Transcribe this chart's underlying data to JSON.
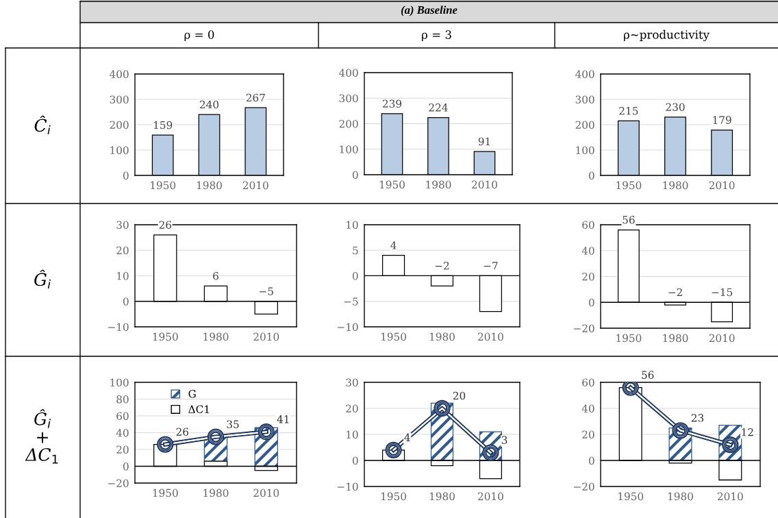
{
  "chart_data": [
    {
      "type": "other",
      "title": "(a) Baseline",
      "categories": [
        "ρ = 0",
        "ρ = 3",
        "ρ~productivity"
      ],
      "y_categories": [
        "Ĉ$_{i}$",
        "Ĝ$_{i}$",
        "Ĝ$_{i}$\n+\nΔC$_{1}$"
      ]
    },
    {
      "type": "bar",
      "categories": [
        "1950",
        "1980",
        "2010"
      ],
      "values": [
        159,
        240,
        267
      ],
      "color": "#b8cce4",
      "ylim": [
        0,
        400
      ],
      "yticks": [
        0,
        100,
        200,
        300,
        400
      ],
      "data_labels": true,
      "grid": "y"
    },
    {
      "type": "bar",
      "categories": [
        "1950",
        "1980",
        "2010"
      ],
      "values": [
        239,
        224,
        91
      ],
      "color": "#b8cce4",
      "ylim": [
        0,
        400
      ],
      "yticks": [
        0,
        100,
        200,
        300,
        400
      ],
      "data_labels": true,
      "grid": "y"
    },
    {
      "type": "bar",
      "categories": [
        "1950",
        "1980",
        "2010"
      ],
      "values": [
        215,
        230,
        179
      ],
      "color": "#b8cce4",
      "ylim": [
        0,
        400
      ],
      "yticks": [
        0,
        100,
        200,
        300,
        400
      ],
      "data_labels": true,
      "grid": "y"
    },
    {
      "type": "bar",
      "categories": [
        "1950",
        "1980",
        "2010"
      ],
      "values": [
        26,
        6,
        -5
      ],
      "color": "#ffffff",
      "ylim": [
        -10,
        30
      ],
      "yticks": [
        -10,
        0,
        10,
        20,
        30
      ],
      "data_labels": true,
      "grid": "y"
    },
    {
      "type": "bar",
      "categories": [
        "1950",
        "1980",
        "2010"
      ],
      "values": [
        4,
        -2,
        -7
      ],
      "color": "#ffffff",
      "ylim": [
        -10,
        10
      ],
      "yticks": [
        -10,
        -5,
        0,
        5,
        10
      ],
      "data_labels": true,
      "grid": "y"
    },
    {
      "type": "bar",
      "categories": [
        "1950",
        "1980",
        "2010"
      ],
      "values": [
        56,
        -2,
        -15
      ],
      "color": "#ffffff",
      "ylim": [
        -20,
        60
      ],
      "yticks": [
        -20,
        0,
        20,
        40,
        60
      ],
      "data_labels": true,
      "grid": "y"
    },
    {
      "type": "bar",
      "categories": [
        "1950",
        "1980",
        "2010"
      ],
      "stacked": true,
      "ylim": [
        -20,
        100
      ],
      "yticks": [
        -20,
        0,
        20,
        40,
        60,
        80,
        100
      ],
      "grid": "y",
      "legend": "top left",
      "marker": "circle",
      "series": [
        {
          "name": "ΔC1",
          "color": "#ffffff",
          "values": [
            26,
            6,
            -5
          ]
        },
        {
          "name": "G",
          "color": "#2e5a94",
          "values": [
            null,
            29,
            46
          ]
        },
        {
          "type": "line",
          "color": "#1f3864",
          "values": [
            26,
            35,
            41
          ],
          "value_labels": [
            "26",
            "35",
            "41"
          ]
        }
      ]
    },
    {
      "type": "bar",
      "categories": [
        "1950",
        "1980",
        "2010"
      ],
      "stacked": true,
      "ylim": [
        -10,
        30
      ],
      "yticks": [
        -10,
        0,
        10,
        20,
        30
      ],
      "grid": "y",
      "marker": "circle",
      "series": [
        {
          "color": "#ffffff",
          "values": [
            4,
            -2,
            -7
          ]
        },
        {
          "color": "#2e5a94",
          "values": [
            null,
            22,
            11
          ]
        },
        {
          "type": "line",
          "color": "#1f3864",
          "values": [
            4,
            20,
            3
          ],
          "value_labels": [
            "4",
            "20",
            "3"
          ]
        }
      ]
    },
    {
      "type": "bar",
      "categories": [
        "1950",
        "1980",
        "2010"
      ],
      "stacked": true,
      "ylim": [
        -20,
        60
      ],
      "yticks": [
        -20,
        0,
        20,
        40,
        60
      ],
      "grid": "y",
      "marker": "circle",
      "series": [
        {
          "color": "#ffffff",
          "values": [
            56,
            -2,
            -15
          ]
        },
        {
          "color": "#2e5a94",
          "values": [
            null,
            25,
            27
          ]
        },
        {
          "type": "line",
          "color": "#1f3864",
          "values": [
            56,
            23,
            12
          ],
          "value_labels": [
            "56",
            "23",
            "12"
          ]
        }
      ]
    }
  ]
}
